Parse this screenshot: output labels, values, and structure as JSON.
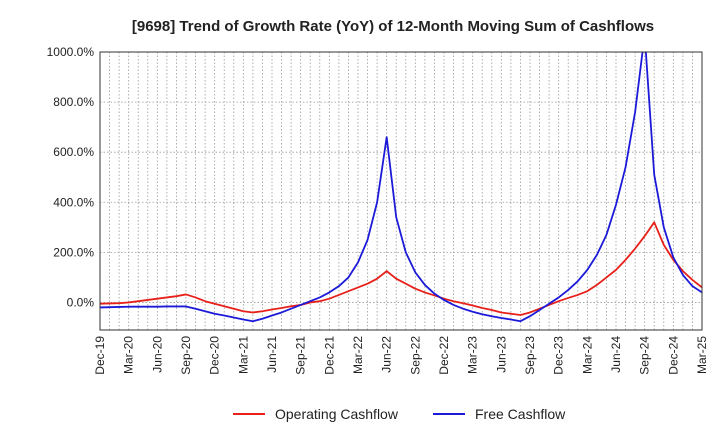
{
  "chart_data": {
    "type": "line",
    "title": "[9698]  Trend of Growth Rate (YoY) of 12-Month Moving Sum of Cashflows",
    "xlabel": "",
    "ylabel": "",
    "y_tick_labels": [
      "0.0%",
      "200.0%",
      "400.0%",
      "600.0%",
      "800.0%",
      "1000.0%"
    ],
    "y_ticks": [
      0,
      200,
      400,
      600,
      800,
      1000
    ],
    "ylim": [
      -110,
      1000
    ],
    "x_tick_labels": [
      "Dec-19",
      "Mar-20",
      "Jun-20",
      "Sep-20",
      "Dec-20",
      "Mar-21",
      "Jun-21",
      "Sep-21",
      "Dec-21",
      "Mar-22",
      "Jun-22",
      "Sep-22",
      "Dec-22",
      "Mar-23",
      "Jun-23",
      "Sep-23",
      "Dec-23",
      "Mar-24",
      "Jun-24",
      "Sep-24",
      "Dec-24",
      "Mar-25"
    ],
    "x_start": "2019-12",
    "grid": true,
    "legend_position": "bottom",
    "series": [
      {
        "name": "Operating Cashflow",
        "color": "#e8201a",
        "values": [
          -5,
          -4,
          -3,
          0,
          5,
          10,
          15,
          20,
          25,
          32,
          20,
          5,
          -5,
          -15,
          -25,
          -35,
          -40,
          -35,
          -28,
          -22,
          -15,
          -10,
          0,
          5,
          15,
          30,
          45,
          60,
          75,
          95,
          125,
          95,
          75,
          55,
          40,
          28,
          15,
          5,
          -3,
          -12,
          -22,
          -30,
          -40,
          -45,
          -50,
          -40,
          -25,
          -10,
          5,
          18,
          30,
          45,
          70,
          100,
          130,
          170,
          215,
          265,
          320,
          230,
          170,
          125,
          90,
          60,
          30
        ]
      },
      {
        "name": "Free Cashflow",
        "color": "#1c1ad8",
        "values": [
          -20,
          -19,
          -18,
          -17,
          -17,
          -17,
          -17,
          -16,
          -16,
          -16,
          -25,
          -35,
          -45,
          -52,
          -60,
          -68,
          -75,
          -65,
          -52,
          -40,
          -25,
          -10,
          5,
          20,
          40,
          65,
          100,
          160,
          250,
          400,
          660,
          340,
          200,
          120,
          70,
          35,
          10,
          -10,
          -25,
          -37,
          -47,
          -55,
          -62,
          -68,
          -75,
          -55,
          -30,
          -5,
          20,
          50,
          85,
          130,
          190,
          270,
          390,
          540,
          760,
          1070,
          510,
          300,
          180,
          110,
          65,
          40,
          25
        ]
      }
    ]
  }
}
